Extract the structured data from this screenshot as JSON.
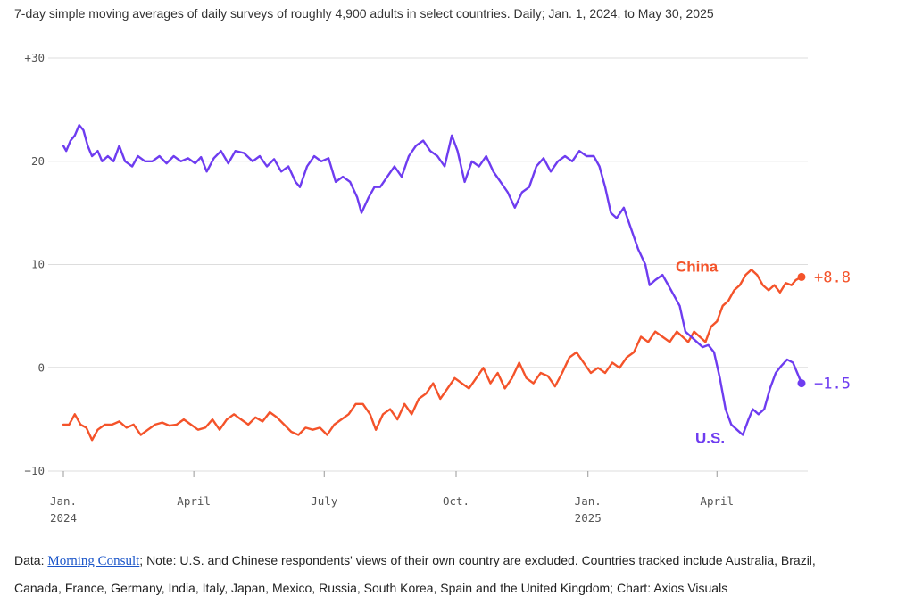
{
  "subtitle": "7-day simple moving averages of daily surveys of roughly 4,900 adults in select countries. Daily; Jan. 1, 2024, to May 30, 2025",
  "footer": {
    "data_prefix": "Data: ",
    "source_link": "Morning Consult",
    "line1_rest": "; Note: U.S. and Chinese respondents' views of their own country are excluded. Countries tracked include Australia, Brazil,",
    "line2": "Canada, France, Germany, India, Italy, Japan, Mexico, Russia, South Korea, Spain and the United Kingdom; Chart: Axios Visuals"
  },
  "chart_data": {
    "type": "line",
    "x_start": "2024-01-01",
    "x_end": "2025-05-30",
    "ylim": [
      -10,
      30
    ],
    "yticks": [
      {
        "value": 30,
        "label": "+30"
      },
      {
        "value": 20,
        "label": "20"
      },
      {
        "value": 10,
        "label": "10"
      },
      {
        "value": 0,
        "label": "0"
      },
      {
        "value": -10,
        "label": "−10"
      }
    ],
    "xticks": [
      {
        "date": "2024-01-01",
        "label": "Jan.",
        "sub": "2024"
      },
      {
        "date": "2024-04-01",
        "label": "April",
        "sub": ""
      },
      {
        "date": "2024-07-01",
        "label": "July",
        "sub": ""
      },
      {
        "date": "2024-10-01",
        "label": "Oct.",
        "sub": ""
      },
      {
        "date": "2025-01-01",
        "label": "Jan.",
        "sub": "2025"
      },
      {
        "date": "2025-04-01",
        "label": "April",
        "sub": ""
      }
    ],
    "grid": true,
    "series": [
      {
        "name": "U.S.",
        "color": "#6e3cf0",
        "end_label": "−1.5",
        "points": [
          [
            "2024-01-01",
            21.5
          ],
          [
            "2024-01-03",
            21.0
          ],
          [
            "2024-01-06",
            22.0
          ],
          [
            "2024-01-09",
            22.5
          ],
          [
            "2024-01-12",
            23.5
          ],
          [
            "2024-01-15",
            23.0
          ],
          [
            "2024-01-18",
            21.5
          ],
          [
            "2024-01-21",
            20.5
          ],
          [
            "2024-01-25",
            21.0
          ],
          [
            "2024-01-28",
            20.0
          ],
          [
            "2024-02-01",
            20.5
          ],
          [
            "2024-02-05",
            20.0
          ],
          [
            "2024-02-09",
            21.5
          ],
          [
            "2024-02-13",
            20.0
          ],
          [
            "2024-02-18",
            19.5
          ],
          [
            "2024-02-22",
            20.5
          ],
          [
            "2024-02-27",
            20.0
          ],
          [
            "2024-03-03",
            20.0
          ],
          [
            "2024-03-08",
            20.5
          ],
          [
            "2024-03-13",
            19.8
          ],
          [
            "2024-03-18",
            20.5
          ],
          [
            "2024-03-23",
            20.0
          ],
          [
            "2024-03-28",
            20.3
          ],
          [
            "2024-04-02",
            19.8
          ],
          [
            "2024-04-06",
            20.4
          ],
          [
            "2024-04-10",
            19.0
          ],
          [
            "2024-04-15",
            20.3
          ],
          [
            "2024-04-20",
            21.0
          ],
          [
            "2024-04-25",
            19.8
          ],
          [
            "2024-04-30",
            21.0
          ],
          [
            "2024-05-06",
            20.8
          ],
          [
            "2024-05-12",
            20.0
          ],
          [
            "2024-05-17",
            20.5
          ],
          [
            "2024-05-22",
            19.5
          ],
          [
            "2024-05-27",
            20.2
          ],
          [
            "2024-06-01",
            19.0
          ],
          [
            "2024-06-06",
            19.5
          ],
          [
            "2024-06-11",
            18.0
          ],
          [
            "2024-06-14",
            17.5
          ],
          [
            "2024-06-19",
            19.5
          ],
          [
            "2024-06-24",
            20.5
          ],
          [
            "2024-06-29",
            20.0
          ],
          [
            "2024-07-04",
            20.3
          ],
          [
            "2024-07-09",
            18.0
          ],
          [
            "2024-07-14",
            18.5
          ],
          [
            "2024-07-19",
            18.0
          ],
          [
            "2024-07-24",
            16.5
          ],
          [
            "2024-07-27",
            15.0
          ],
          [
            "2024-08-01",
            16.5
          ],
          [
            "2024-08-05",
            17.5
          ],
          [
            "2024-08-09",
            17.5
          ],
          [
            "2024-08-14",
            18.5
          ],
          [
            "2024-08-19",
            19.5
          ],
          [
            "2024-08-24",
            18.5
          ],
          [
            "2024-08-29",
            20.5
          ],
          [
            "2024-09-03",
            21.5
          ],
          [
            "2024-09-08",
            22.0
          ],
          [
            "2024-09-13",
            21.0
          ],
          [
            "2024-09-18",
            20.5
          ],
          [
            "2024-09-23",
            19.5
          ],
          [
            "2024-09-28",
            22.5
          ],
          [
            "2024-10-02",
            21.0
          ],
          [
            "2024-10-07",
            18.0
          ],
          [
            "2024-10-12",
            20.0
          ],
          [
            "2024-10-17",
            19.5
          ],
          [
            "2024-10-22",
            20.5
          ],
          [
            "2024-10-27",
            19.0
          ],
          [
            "2024-11-01",
            18.0
          ],
          [
            "2024-11-06",
            17.0
          ],
          [
            "2024-11-11",
            15.5
          ],
          [
            "2024-11-16",
            17.0
          ],
          [
            "2024-11-21",
            17.5
          ],
          [
            "2024-11-26",
            19.5
          ],
          [
            "2024-12-01",
            20.3
          ],
          [
            "2024-12-06",
            19.0
          ],
          [
            "2024-12-11",
            20.0
          ],
          [
            "2024-12-16",
            20.5
          ],
          [
            "2024-12-21",
            20.0
          ],
          [
            "2024-12-26",
            21.0
          ],
          [
            "2024-12-31",
            20.5
          ],
          [
            "2025-01-05",
            20.5
          ],
          [
            "2025-01-09",
            19.5
          ],
          [
            "2025-01-13",
            17.5
          ],
          [
            "2025-01-17",
            15.0
          ],
          [
            "2025-01-21",
            14.5
          ],
          [
            "2025-01-26",
            15.5
          ],
          [
            "2025-01-31",
            13.5
          ],
          [
            "2025-02-05",
            11.5
          ],
          [
            "2025-02-10",
            10.0
          ],
          [
            "2025-02-13",
            8.0
          ],
          [
            "2025-02-17",
            8.5
          ],
          [
            "2025-02-22",
            9.0
          ],
          [
            "2025-02-26",
            8.0
          ],
          [
            "2025-03-02",
            7.0
          ],
          [
            "2025-03-06",
            6.0
          ],
          [
            "2025-03-10",
            3.5
          ],
          [
            "2025-03-14",
            3.0
          ],
          [
            "2025-03-18",
            2.5
          ],
          [
            "2025-03-22",
            2.0
          ],
          [
            "2025-03-26",
            2.2
          ],
          [
            "2025-03-30",
            1.5
          ],
          [
            "2025-04-03",
            -1.0
          ],
          [
            "2025-04-07",
            -4.0
          ],
          [
            "2025-04-11",
            -5.5
          ],
          [
            "2025-04-15",
            -6.0
          ],
          [
            "2025-04-19",
            -6.5
          ],
          [
            "2025-04-23",
            -5.0
          ],
          [
            "2025-04-26",
            -4.0
          ],
          [
            "2025-04-30",
            -4.5
          ],
          [
            "2025-05-04",
            -4.0
          ],
          [
            "2025-05-08",
            -2.0
          ],
          [
            "2025-05-12",
            -0.5
          ],
          [
            "2025-05-16",
            0.2
          ],
          [
            "2025-05-20",
            0.8
          ],
          [
            "2025-05-24",
            0.5
          ],
          [
            "2025-05-27",
            -0.5
          ],
          [
            "2025-05-30",
            -1.5
          ]
        ]
      },
      {
        "name": "China",
        "color": "#f4532a",
        "end_label": "+8.8",
        "points": [
          [
            "2024-01-01",
            -5.5
          ],
          [
            "2024-01-05",
            -5.5
          ],
          [
            "2024-01-09",
            -4.5
          ],
          [
            "2024-01-13",
            -5.5
          ],
          [
            "2024-01-17",
            -5.8
          ],
          [
            "2024-01-21",
            -7.0
          ],
          [
            "2024-01-25",
            -6.0
          ],
          [
            "2024-01-30",
            -5.5
          ],
          [
            "2024-02-04",
            -5.5
          ],
          [
            "2024-02-09",
            -5.2
          ],
          [
            "2024-02-14",
            -5.8
          ],
          [
            "2024-02-19",
            -5.5
          ],
          [
            "2024-02-24",
            -6.5
          ],
          [
            "2024-02-29",
            -6.0
          ],
          [
            "2024-03-05",
            -5.5
          ],
          [
            "2024-03-10",
            -5.3
          ],
          [
            "2024-03-15",
            -5.6
          ],
          [
            "2024-03-20",
            -5.5
          ],
          [
            "2024-03-25",
            -5.0
          ],
          [
            "2024-03-30",
            -5.5
          ],
          [
            "2024-04-04",
            -6.0
          ],
          [
            "2024-04-09",
            -5.8
          ],
          [
            "2024-04-14",
            -5.0
          ],
          [
            "2024-04-19",
            -6.0
          ],
          [
            "2024-04-24",
            -5.0
          ],
          [
            "2024-04-29",
            -4.5
          ],
          [
            "2024-05-04",
            -5.0
          ],
          [
            "2024-05-09",
            -5.5
          ],
          [
            "2024-05-14",
            -4.8
          ],
          [
            "2024-05-19",
            -5.2
          ],
          [
            "2024-05-24",
            -4.3
          ],
          [
            "2024-05-29",
            -4.8
          ],
          [
            "2024-06-03",
            -5.5
          ],
          [
            "2024-06-08",
            -6.2
          ],
          [
            "2024-06-13",
            -6.5
          ],
          [
            "2024-06-18",
            -5.8
          ],
          [
            "2024-06-23",
            -6.0
          ],
          [
            "2024-06-28",
            -5.8
          ],
          [
            "2024-07-03",
            -6.5
          ],
          [
            "2024-07-08",
            -5.5
          ],
          [
            "2024-07-13",
            -5.0
          ],
          [
            "2024-07-18",
            -4.5
          ],
          [
            "2024-07-23",
            -3.5
          ],
          [
            "2024-07-28",
            -3.5
          ],
          [
            "2024-08-02",
            -4.5
          ],
          [
            "2024-08-06",
            -6.0
          ],
          [
            "2024-08-11",
            -4.5
          ],
          [
            "2024-08-16",
            -4.0
          ],
          [
            "2024-08-21",
            -5.0
          ],
          [
            "2024-08-26",
            -3.5
          ],
          [
            "2024-08-31",
            -4.5
          ],
          [
            "2024-09-05",
            -3.0
          ],
          [
            "2024-09-10",
            -2.5
          ],
          [
            "2024-09-15",
            -1.5
          ],
          [
            "2024-09-20",
            -3.0
          ],
          [
            "2024-09-25",
            -2.0
          ],
          [
            "2024-09-30",
            -1.0
          ],
          [
            "2024-10-05",
            -1.5
          ],
          [
            "2024-10-10",
            -2.0
          ],
          [
            "2024-10-15",
            -1.0
          ],
          [
            "2024-10-20",
            0.0
          ],
          [
            "2024-10-25",
            -1.5
          ],
          [
            "2024-10-30",
            -0.5
          ],
          [
            "2024-11-04",
            -2.0
          ],
          [
            "2024-11-09",
            -1.0
          ],
          [
            "2024-11-14",
            0.5
          ],
          [
            "2024-11-19",
            -1.0
          ],
          [
            "2024-11-24",
            -1.5
          ],
          [
            "2024-11-29",
            -0.5
          ],
          [
            "2024-12-04",
            -0.8
          ],
          [
            "2024-12-09",
            -1.8
          ],
          [
            "2024-12-14",
            -0.5
          ],
          [
            "2024-12-19",
            1.0
          ],
          [
            "2024-12-24",
            1.5
          ],
          [
            "2024-12-29",
            0.5
          ],
          [
            "2025-01-03",
            -0.5
          ],
          [
            "2025-01-08",
            0.0
          ],
          [
            "2025-01-13",
            -0.5
          ],
          [
            "2025-01-18",
            0.5
          ],
          [
            "2025-01-23",
            0.0
          ],
          [
            "2025-01-28",
            1.0
          ],
          [
            "2025-02-02",
            1.5
          ],
          [
            "2025-02-07",
            3.0
          ],
          [
            "2025-02-12",
            2.5
          ],
          [
            "2025-02-17",
            3.5
          ],
          [
            "2025-02-22",
            3.0
          ],
          [
            "2025-02-27",
            2.5
          ],
          [
            "2025-03-04",
            3.5
          ],
          [
            "2025-03-08",
            3.0
          ],
          [
            "2025-03-12",
            2.5
          ],
          [
            "2025-03-16",
            3.5
          ],
          [
            "2025-03-20",
            3.0
          ],
          [
            "2025-03-24",
            2.5
          ],
          [
            "2025-03-28",
            4.0
          ],
          [
            "2025-04-01",
            4.5
          ],
          [
            "2025-04-05",
            6.0
          ],
          [
            "2025-04-09",
            6.5
          ],
          [
            "2025-04-13",
            7.5
          ],
          [
            "2025-04-17",
            8.0
          ],
          [
            "2025-04-21",
            9.0
          ],
          [
            "2025-04-25",
            9.5
          ],
          [
            "2025-04-29",
            9.0
          ],
          [
            "2025-05-03",
            8.0
          ],
          [
            "2025-05-07",
            7.5
          ],
          [
            "2025-05-11",
            8.0
          ],
          [
            "2025-05-15",
            7.3
          ],
          [
            "2025-05-19",
            8.2
          ],
          [
            "2025-05-23",
            8.0
          ],
          [
            "2025-05-26",
            8.5
          ],
          [
            "2025-05-30",
            8.8
          ]
        ]
      }
    ]
  }
}
